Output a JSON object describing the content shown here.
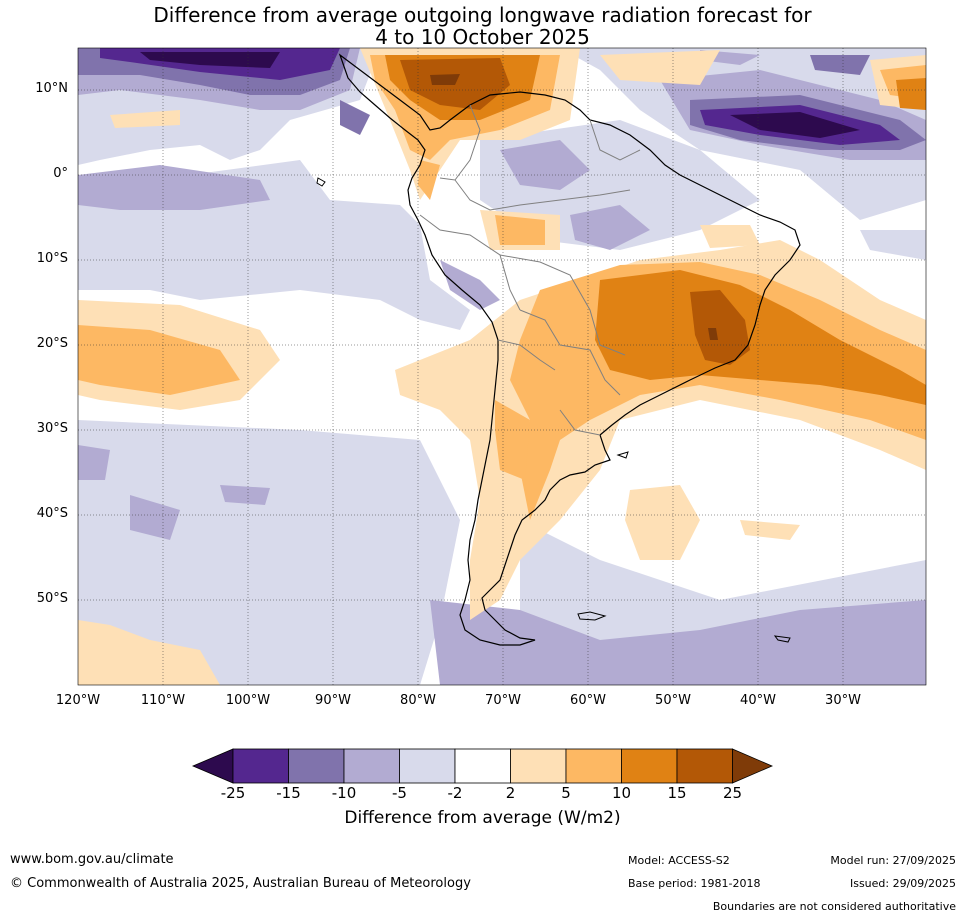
{
  "header": {
    "title_line1": "Difference from average outgoing longwave radiation forecast for",
    "title_line2": "4 to 10 October 2025"
  },
  "map": {
    "region": "South America",
    "lat_labels": [
      "10°N",
      "0°",
      "10°S",
      "20°S",
      "30°S",
      "40°S",
      "50°S"
    ],
    "lon_labels": [
      "120°W",
      "110°W",
      "100°W",
      "90°W",
      "80°W",
      "70°W",
      "60°W",
      "50°W",
      "40°W",
      "30°W"
    ]
  },
  "colorbar": {
    "ticks": [
      "-25",
      "-15",
      "-10",
      "-5",
      "-2",
      "2",
      "5",
      "10",
      "15",
      "25"
    ],
    "colors": [
      "#2d0a4e",
      "#54278f",
      "#8073ac",
      "#b2abd2",
      "#d8daeb",
      "#ffffff",
      "#fee0b6",
      "#fdb863",
      "#e08214",
      "#b35806",
      "#7f3b08"
    ],
    "label": "Difference from average (W/m2)"
  },
  "footer": {
    "website": "www.bom.gov.au/climate",
    "copyright": "© Commonwealth of Australia 2025, Australian Bureau of Meteorology",
    "model": "Model: ACCESS-S2",
    "base_period": "Base period: 1981-2018",
    "model_run": "Model run: 27/09/2025",
    "issued": "Issued: 29/09/2025",
    "disclaimer": "Boundaries are not considered authoritative"
  }
}
